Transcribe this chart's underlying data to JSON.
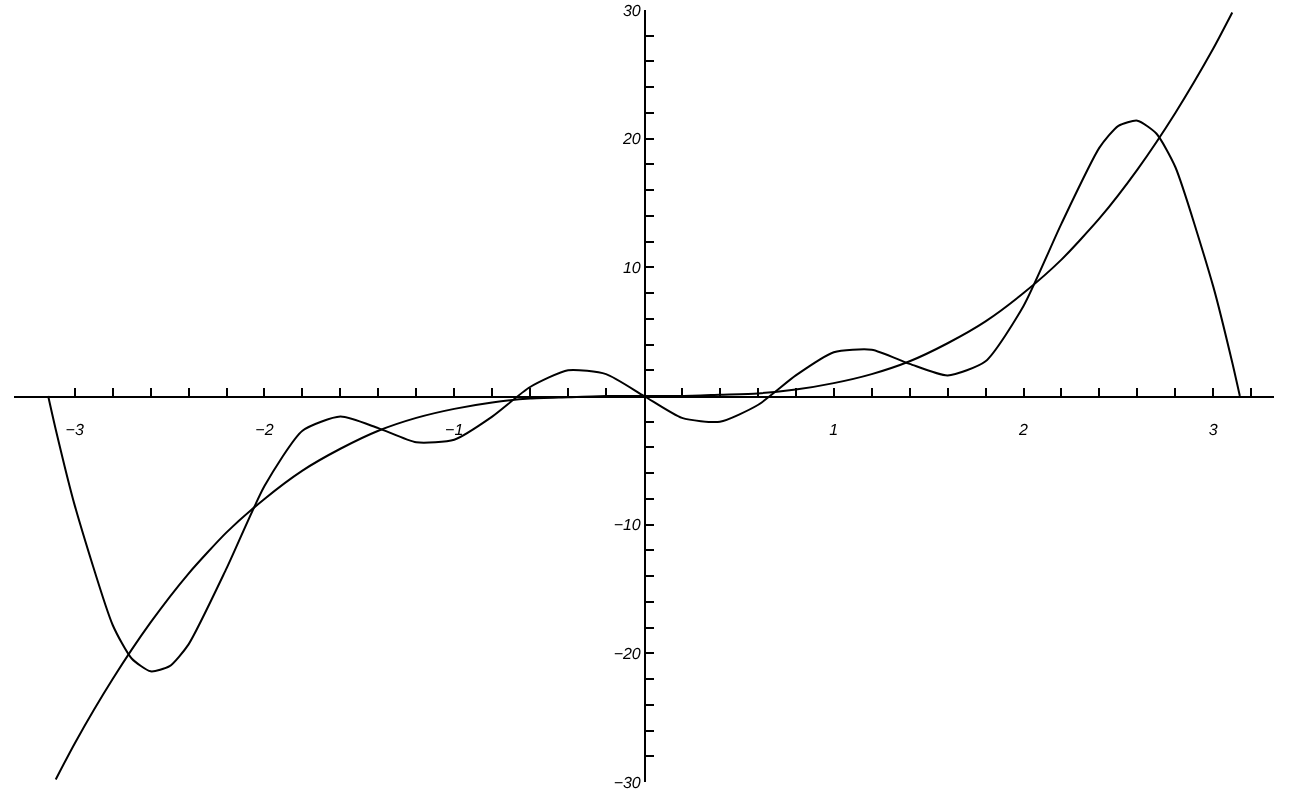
{
  "chart_data": {
    "type": "line",
    "grid": false,
    "marker": "none",
    "line_style": "solid",
    "xlim": [
      -3.32,
      3.32
    ],
    "ylim": [
      -30,
      30
    ],
    "xticks": [
      -3,
      {
        "value": -2.8,
        "label": null
      },
      {
        "value": -2.6,
        "label": null
      },
      {
        "value": -2.4,
        "label": null
      },
      {
        "value": -2.2,
        "label": null
      },
      -2,
      {
        "value": -1.8,
        "label": null
      },
      {
        "value": -1.6,
        "label": null
      },
      {
        "value": -1.4,
        "label": null
      },
      {
        "value": -1.2,
        "label": null
      },
      -1,
      {
        "value": -0.8,
        "label": null
      },
      {
        "value": -0.6,
        "label": null
      },
      {
        "value": -0.4,
        "label": null
      },
      {
        "value": -0.2,
        "label": null
      },
      {
        "value": 0.2,
        "label": null
      },
      {
        "value": 0.4,
        "label": null
      },
      {
        "value": 0.6,
        "label": null
      },
      {
        "value": 0.8,
        "label": null
      },
      1,
      {
        "value": 1.2,
        "label": null
      },
      {
        "value": 1.4,
        "label": null
      },
      {
        "value": 1.6,
        "label": null
      },
      {
        "value": 1.8,
        "label": null
      },
      2,
      {
        "value": 2.2,
        "label": null
      },
      {
        "value": 2.4,
        "label": null
      },
      {
        "value": 2.6,
        "label": null
      },
      {
        "value": 2.8,
        "label": null
      },
      3,
      {
        "value": 3.2,
        "label": null
      }
    ],
    "yticks": [
      -30,
      {
        "value": -28,
        "label": null
      },
      {
        "value": -26,
        "label": null
      },
      {
        "value": -24,
        "label": null
      },
      {
        "value": -22,
        "label": null
      },
      -20,
      {
        "value": -18,
        "label": null
      },
      {
        "value": -16,
        "label": null
      },
      {
        "value": -14,
        "label": null
      },
      {
        "value": -12,
        "label": null
      },
      -10,
      {
        "value": -8,
        "label": null
      },
      {
        "value": -6,
        "label": null
      },
      {
        "value": -4,
        "label": null
      },
      {
        "value": -2,
        "label": null
      },
      {
        "value": 2,
        "label": null
      },
      {
        "value": 4,
        "label": null
      },
      {
        "value": 6,
        "label": null
      },
      {
        "value": 8,
        "label": null
      },
      10,
      {
        "value": 12,
        "label": null
      },
      {
        "value": 14,
        "label": null
      },
      {
        "value": 16,
        "label": null
      },
      {
        "value": 18,
        "label": null
      },
      20,
      {
        "value": 22,
        "label": null
      },
      {
        "value": 24,
        "label": null
      },
      {
        "value": 26,
        "label": null
      },
      {
        "value": 28,
        "label": null
      },
      30
    ],
    "series": [
      {
        "color": "#000000",
        "x": [
          -3.1,
          -3.0,
          -2.8,
          -2.6,
          -2.4,
          -2.2,
          -2.0,
          -1.8,
          -1.6,
          -1.4,
          -1.2,
          -1.0,
          -0.8,
          -0.6,
          -0.4,
          -0.2,
          0,
          0.2,
          0.4,
          0.6,
          0.8,
          1.0,
          1.2,
          1.4,
          1.6,
          1.8,
          2.0,
          2.2,
          2.4,
          2.6,
          2.8,
          3.0,
          3.1
        ],
        "values": [
          -29.8,
          -27,
          -22,
          -17.6,
          -13.8,
          -10.6,
          -8,
          -5.8,
          -4.1,
          -2.7,
          -1.7,
          -1,
          -0.5,
          -0.2,
          -0.1,
          0,
          0,
          0,
          0.1,
          0.2,
          0.5,
          1,
          1.7,
          2.7,
          4.1,
          5.8,
          8,
          10.6,
          13.8,
          17.6,
          22,
          27,
          29.8
        ]
      },
      {
        "color": "#000000",
        "x": [
          -3.14,
          -3.1,
          -3.0,
          -2.8,
          -2.7,
          -2.6,
          -2.5,
          -2.4,
          -2.2,
          -2.0,
          -1.8,
          -1.6,
          -1.4,
          -1.2,
          -1.0,
          -0.8,
          -0.6,
          -0.4,
          -0.2,
          0,
          0.2,
          0.4,
          0.6,
          0.8,
          1.0,
          1.2,
          1.4,
          1.6,
          1.8,
          2.0,
          2.2,
          2.4,
          2.5,
          2.6,
          2.7,
          2.8,
          3.0,
          3.1,
          3.14
        ],
        "values": [
          0,
          -2.6,
          -8.5,
          -17.8,
          -20.4,
          -21.4,
          -21,
          -19.3,
          -13.4,
          -7,
          -2.7,
          -1.6,
          -2.5,
          -3.6,
          -3.4,
          -1.6,
          0.7,
          2,
          1.7,
          0,
          -1.7,
          -2,
          -0.7,
          1.6,
          3.4,
          3.6,
          2.5,
          1.6,
          2.7,
          7,
          13.4,
          19.3,
          21,
          21.4,
          20.4,
          17.8,
          8.5,
          2.6,
          0
        ]
      }
    ]
  }
}
